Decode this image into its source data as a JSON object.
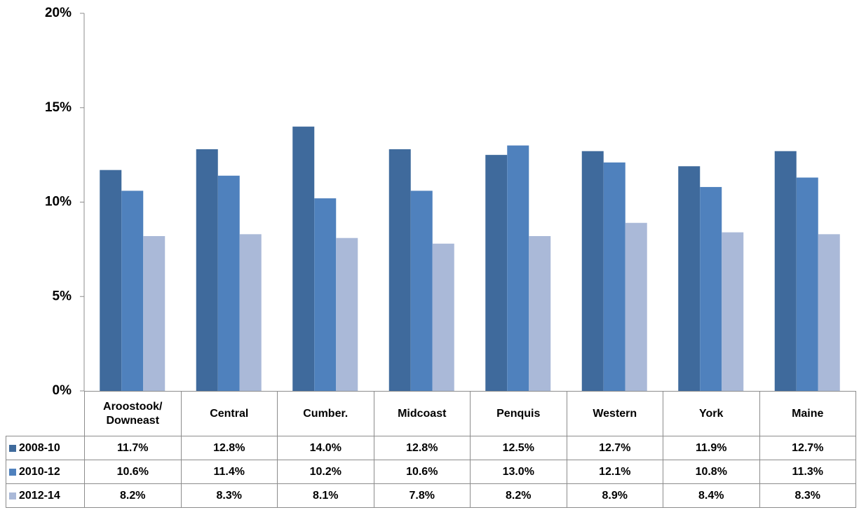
{
  "chart_data": {
    "type": "bar",
    "categories": [
      "Aroostook/\nDowneast",
      "Central",
      "Cumber.",
      "Midcoast",
      "Penquis",
      "Western",
      "York",
      "Maine"
    ],
    "series": [
      {
        "name": "2008-10",
        "color": "#3f6a9c",
        "values": [
          11.7,
          12.8,
          14.0,
          12.8,
          12.5,
          12.7,
          11.9,
          12.7
        ],
        "value_labels": [
          "11.7%",
          "12.8%",
          "14.0%",
          "12.8%",
          "12.5%",
          "12.7%",
          "11.9%",
          "12.7%"
        ]
      },
      {
        "name": "2010-12",
        "color": "#4f81bd",
        "values": [
          10.6,
          11.4,
          10.2,
          10.6,
          13.0,
          12.1,
          10.8,
          11.3
        ],
        "value_labels": [
          "10.6%",
          "11.4%",
          "10.2%",
          "10.6%",
          "13.0%",
          "12.1%",
          "10.8%",
          "11.3%"
        ]
      },
      {
        "name": "2012-14",
        "color": "#aab9d8",
        "values": [
          8.2,
          8.3,
          8.1,
          7.8,
          8.2,
          8.9,
          8.4,
          8.3
        ],
        "value_labels": [
          "8.2%",
          "8.3%",
          "8.1%",
          "7.8%",
          "8.2%",
          "8.9%",
          "8.4%",
          "8.3%"
        ]
      }
    ],
    "ylim": [
      0,
      20
    ],
    "yticks": [
      {
        "value": 0,
        "label": "0%"
      },
      {
        "value": 5,
        "label": "5%"
      },
      {
        "value": 10,
        "label": "10%"
      },
      {
        "value": 15,
        "label": "15%"
      },
      {
        "value": 20,
        "label": "20%"
      }
    ],
    "grid": false
  }
}
